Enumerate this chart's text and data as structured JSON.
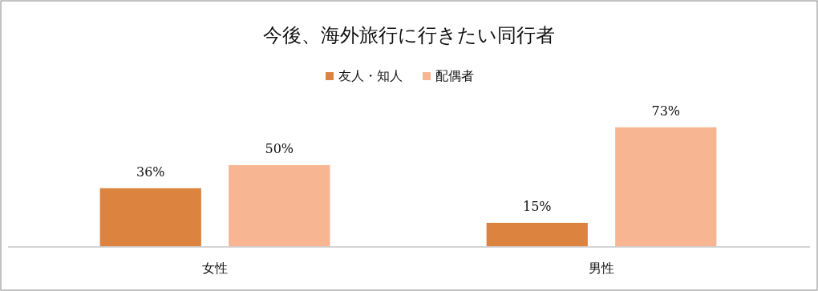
{
  "chart_data": {
    "type": "bar",
    "title": "今後、海外旅行に行きたい同行者",
    "categories": [
      "女性",
      "男性"
    ],
    "series": [
      {
        "name": "友人・知人",
        "color": "#dc843f",
        "values": [
          36,
          15
        ],
        "value_labels": [
          "36%",
          "15%"
        ]
      },
      {
        "name": "配偶者",
        "color": "#f7b592",
        "values": [
          50,
          73
        ],
        "value_labels": [
          "50%",
          "73%"
        ]
      }
    ],
    "legend": "top",
    "grid": false
  }
}
